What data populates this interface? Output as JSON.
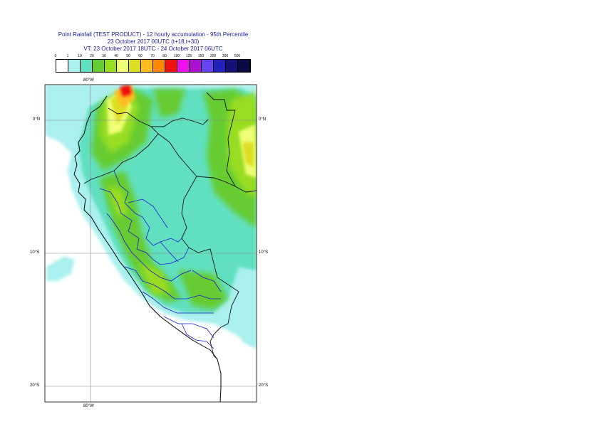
{
  "title": {
    "line1": "Point Rainfall (TEST PRODUCT) - 12 hourly accumulation - 95th Percentile",
    "line2": "23 October 2017 00UTC (t+18,t+30)",
    "line3": "VT: 23 October 2017 18UTC - 24 October 2017 06UTC"
  },
  "legend": {
    "thresholds": [
      "0",
      "1",
      "10",
      "20",
      "30",
      "40",
      "50",
      "60",
      "70",
      "80",
      "100",
      "125",
      "150",
      "200",
      "300",
      "500"
    ],
    "colors": [
      "#ffffff",
      "#aaf0ee",
      "#60e0c0",
      "#66cc33",
      "#99dd22",
      "#eeff77",
      "#dddd22",
      "#ffbb22",
      "#ff8800",
      "#ee1111",
      "#ee11ee",
      "#aa11cc",
      "#6644ee",
      "#2222bb",
      "#111177",
      "#0a0a44"
    ]
  },
  "axes": {
    "lon_top": "80°W",
    "lon_bottom": "80°W",
    "lat_left": [
      "0°N",
      "10°S",
      "20°S"
    ],
    "lat_right": [
      "0°N",
      "10°S",
      "20°S"
    ]
  }
}
